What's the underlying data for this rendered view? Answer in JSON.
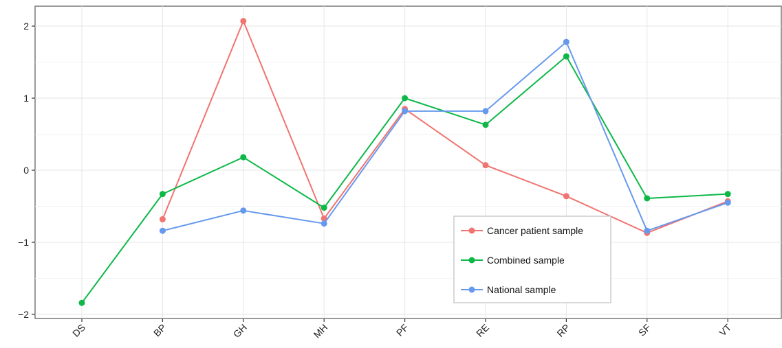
{
  "chart_data": {
    "type": "line",
    "title": "",
    "xlabel": "",
    "ylabel": "",
    "categories": [
      "DS",
      "BP",
      "GH",
      "MH",
      "PF",
      "RE",
      "RP",
      "SF",
      "VT"
    ],
    "ylim": [
      -2.05,
      2.3
    ],
    "yticks": [
      -2,
      -1,
      0,
      1,
      2
    ],
    "ytick_labels": [
      "−2",
      "−1",
      "0",
      "1",
      "2"
    ],
    "grid": true,
    "legend_position": "bottom-right",
    "series": [
      {
        "name": "Cancer patient sample",
        "color": "#F07470",
        "values": [
          null,
          -0.68,
          2.07,
          -0.67,
          0.85,
          0.07,
          -0.36,
          -0.87,
          -0.43
        ]
      },
      {
        "name": "Combined sample",
        "color": "#0DB847",
        "values": [
          -1.84,
          -0.33,
          0.18,
          -0.52,
          1.0,
          0.63,
          1.58,
          -0.39,
          -0.33
        ]
      },
      {
        "name": "National sample",
        "color": "#6699EE",
        "values": [
          null,
          -0.84,
          -0.56,
          -0.74,
          0.82,
          0.82,
          1.78,
          -0.84,
          -0.45
        ]
      }
    ]
  }
}
